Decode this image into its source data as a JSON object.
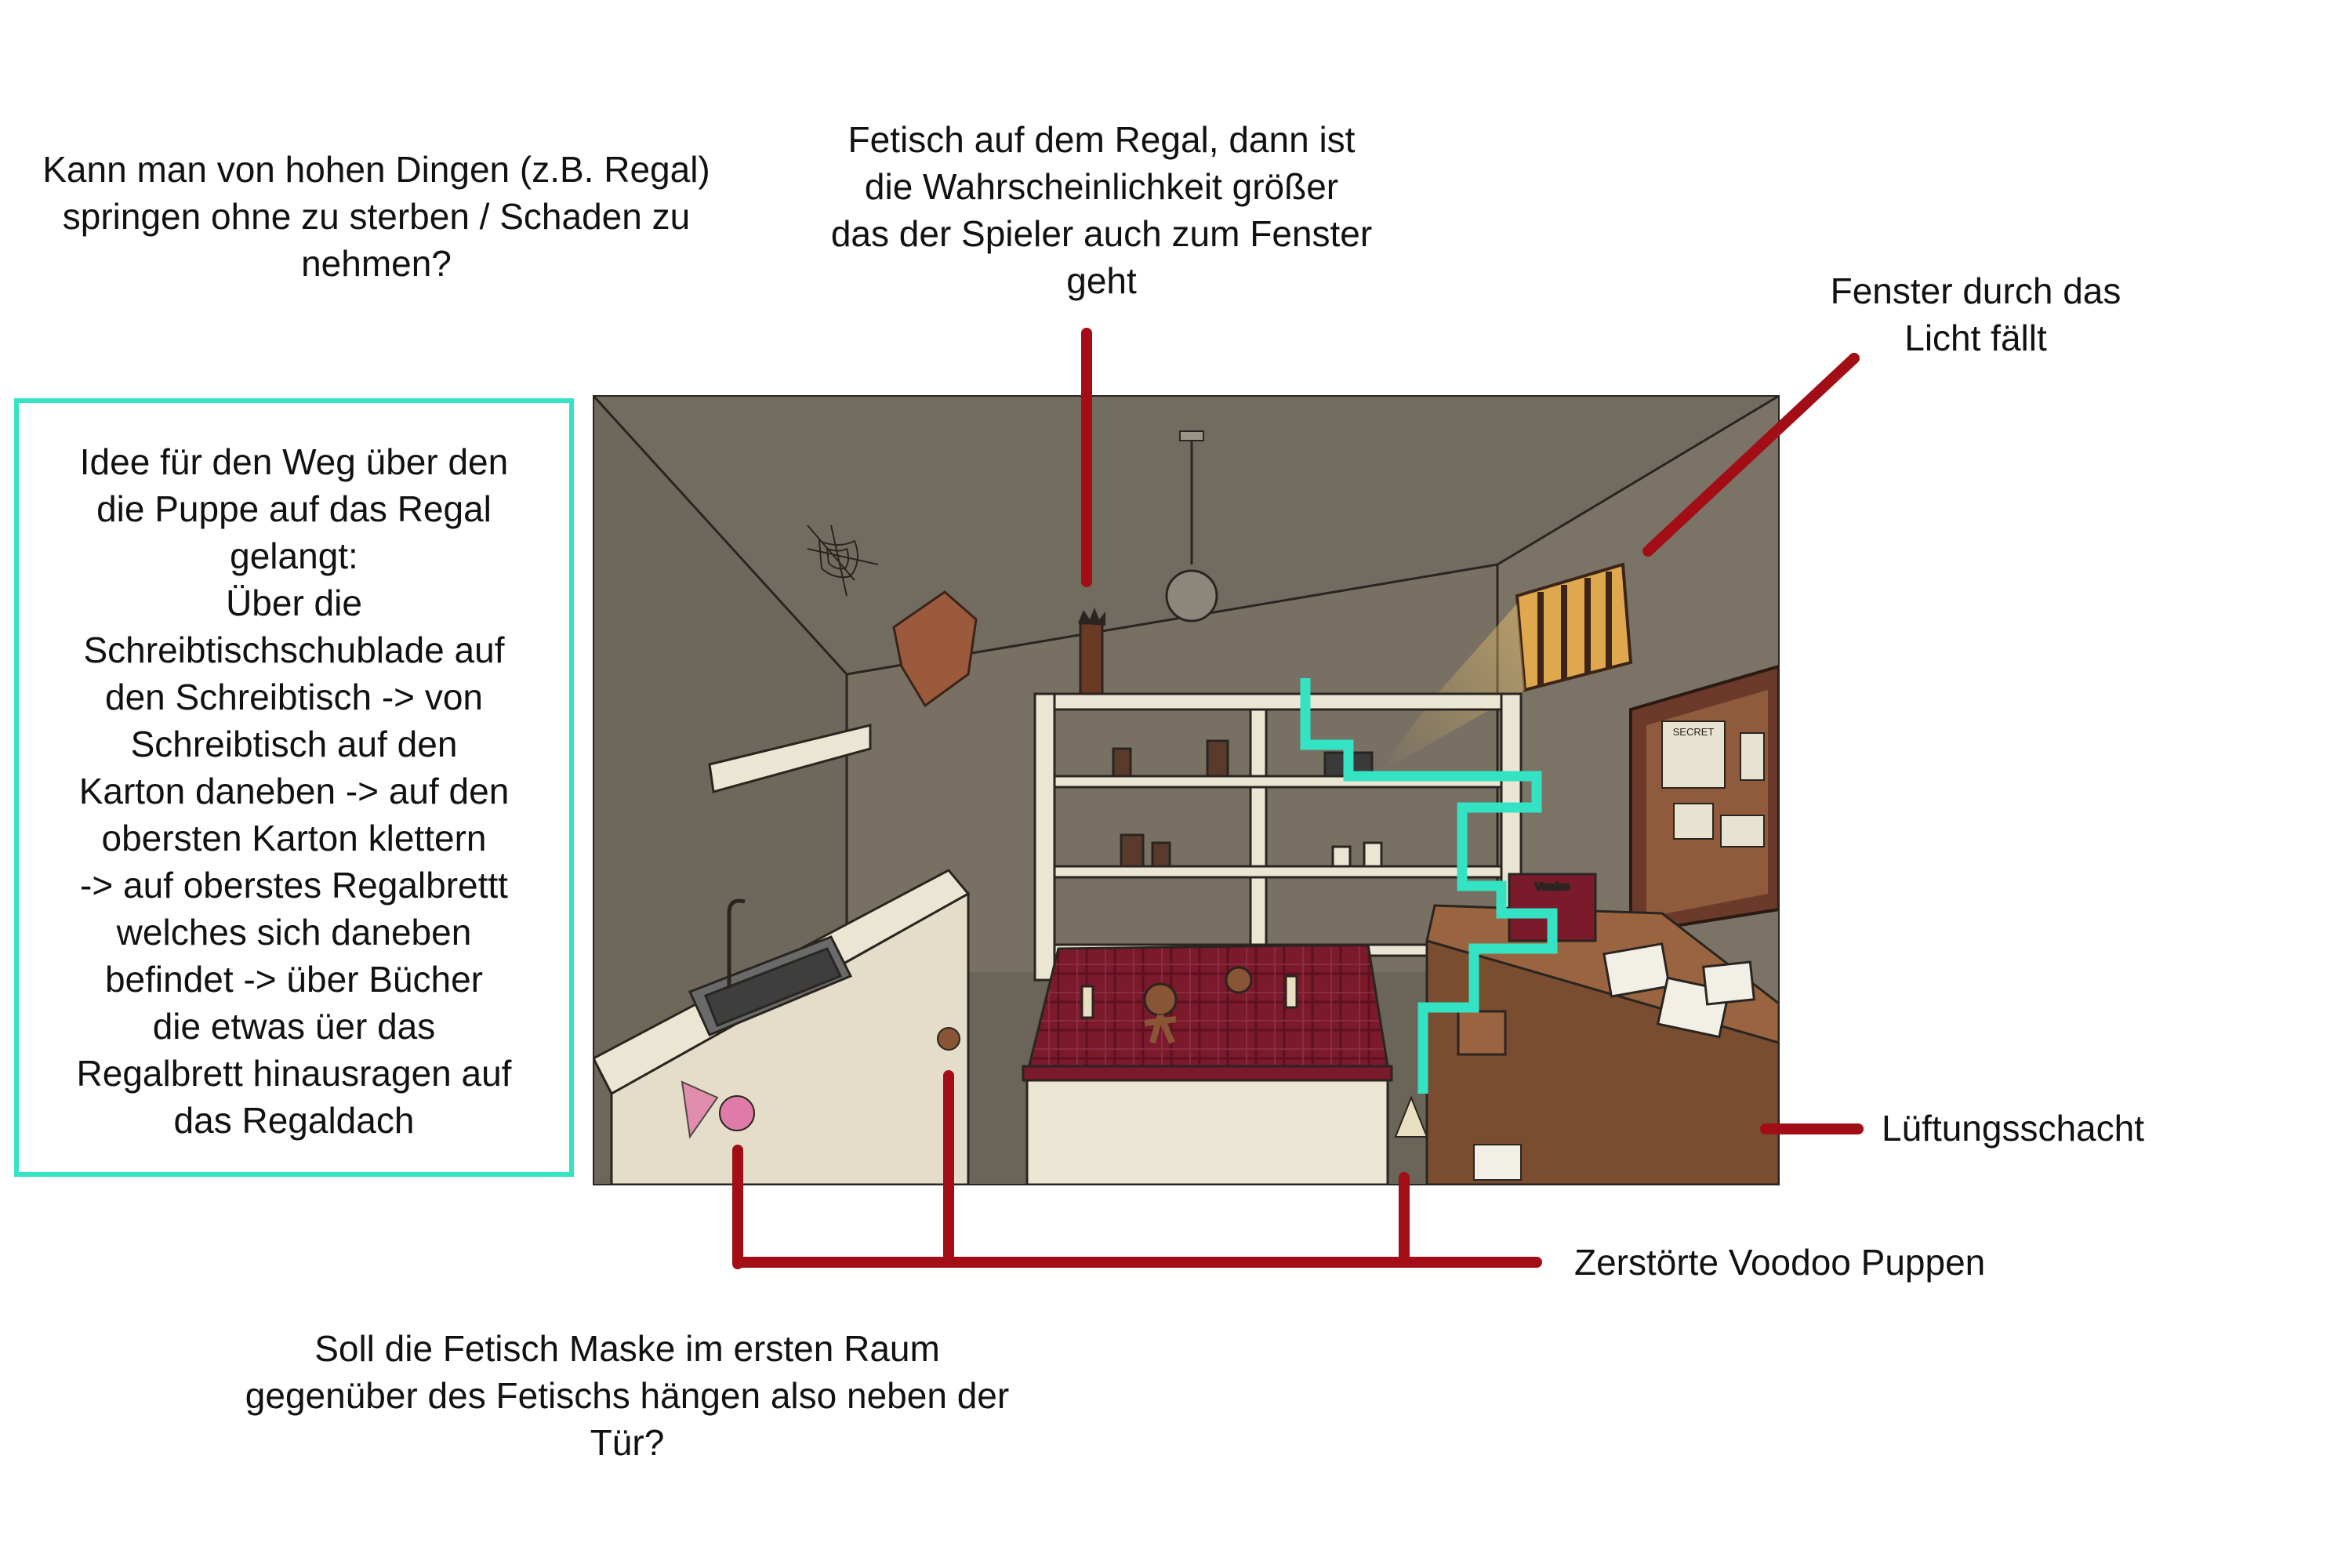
{
  "annotations": {
    "jump_question": [
      "Kann man von hohen Dingen (z.B. Regal)",
      "springen ohne zu sterben / Schaden zu",
      "nehmen?"
    ],
    "fetish_shelf": [
      "Fetisch auf dem Regal, dann ist",
      "die Wahrscheinlichkeit größer",
      "das der Spieler auch zum Fenster",
      "geht"
    ],
    "window_light": [
      "Fenster durch das",
      "Licht fällt"
    ],
    "path_idea": [
      "Idee für den Weg über den",
      "die Puppe auf das Regal",
      "gelangt:",
      "Über die",
      "Schreibtischschublade auf",
      "den Schreibtisch -> von",
      "Schreibtisch auf den",
      "Karton daneben -> auf den",
      "obersten Karton klettern",
      "-> auf oberstes Regalbrettt",
      "welches sich daneben",
      "befindet -> über Bücher",
      "die etwas üer das",
      "Regalbrett hinausragen auf",
      "das Regaldach"
    ],
    "vent": "Lüftungsschacht",
    "destroyed_dolls": "Zerstörte Voodoo Puppen",
    "mask_question": [
      "Soll die Fetisch Maske im ersten Raum",
      "gegenüber des Fetischs hängen also neben der",
      "Tür?"
    ]
  },
  "scene_text": {
    "secret_label": "SECRET",
    "book_label": "Voodoo"
  },
  "colors": {
    "pointer_red": "#a30d16",
    "path_teal": "#33e3c3",
    "wall": "#777063",
    "wood": "#9b6440",
    "tablecloth": "#7a1a2b",
    "cabinet": "#ebe5d4"
  }
}
